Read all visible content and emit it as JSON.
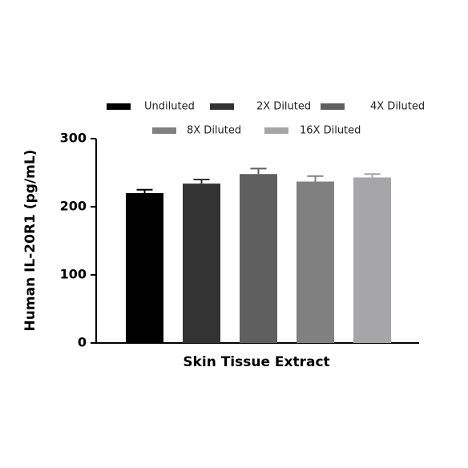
{
  "chart_data": {
    "type": "bar",
    "categories": [
      "Skin Tissue Extract"
    ],
    "x_label": "Skin Tissue Extract",
    "y_label": "Human IL-20R1 (pg/mL)",
    "series": [
      {
        "name": "Undiluted",
        "color": "#000000",
        "values": [
          220
        ],
        "errors": [
          5
        ]
      },
      {
        "name": "2X Diluted",
        "color": "#333333",
        "values": [
          234
        ],
        "errors": [
          6
        ]
      },
      {
        "name": "4X Diluted",
        "color": "#5f5f5f",
        "values": [
          248
        ],
        "errors": [
          8
        ]
      },
      {
        "name": "8X Diluted",
        "color": "#808080",
        "values": [
          237
        ],
        "errors": [
          8
        ]
      },
      {
        "name": "16X Diluted",
        "color": "#a6a6a8",
        "values": [
          243
        ],
        "errors": [
          5
        ]
      }
    ],
    "ylim": [
      0,
      300
    ],
    "yticks": [
      0,
      100,
      200,
      300
    ],
    "legend": "top"
  }
}
